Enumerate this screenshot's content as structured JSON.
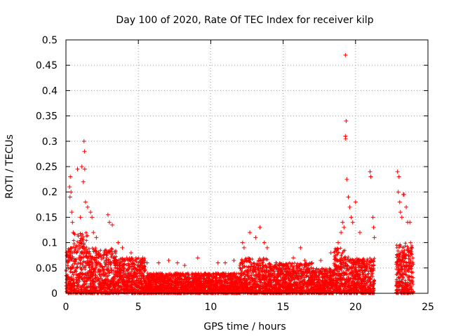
{
  "chart_data": {
    "type": "scatter",
    "title": "Day 100 of 2020, Rate Of TEC Index for receiver kilp",
    "xlabel": "GPS time / hours",
    "ylabel": "ROTI / TECUs",
    "xlim": [
      0,
      25
    ],
    "ylim": [
      0,
      0.5
    ],
    "x_ticks": [
      0,
      5,
      10,
      15,
      20,
      25
    ],
    "x_tick_labels": [
      "0",
      "5",
      "10",
      "15",
      "20",
      "25"
    ],
    "y_ticks": [
      0,
      0.05,
      0.1,
      0.15,
      0.2,
      0.25,
      0.3,
      0.35,
      0.4,
      0.45,
      0.5
    ],
    "y_tick_labels": [
      "0",
      "0.05",
      "0.1",
      "0.15",
      "0.2",
      "0.25",
      "0.3",
      "0.35",
      "0.4",
      "0.45",
      "0.5"
    ],
    "grid": true,
    "legend": "none",
    "marker": "+",
    "color": "#ff0000",
    "bands": [
      {
        "x": [
          0.0,
          0.5
        ],
        "y": [
          0.0,
          0.09
        ]
      },
      {
        "x": [
          0.5,
          1.5
        ],
        "y": [
          0.0,
          0.12
        ]
      },
      {
        "x": [
          1.5,
          3.5
        ],
        "y": [
          0.0,
          0.09
        ]
      },
      {
        "x": [
          3.5,
          5.5
        ],
        "y": [
          0.0,
          0.07
        ]
      },
      {
        "x": [
          5.5,
          9.5
        ],
        "y": [
          0.0,
          0.04
        ]
      },
      {
        "x": [
          9.5,
          12.0
        ],
        "y": [
          0.0,
          0.04
        ]
      },
      {
        "x": [
          12.0,
          14.0
        ],
        "y": [
          0.0,
          0.07
        ]
      },
      {
        "x": [
          14.0,
          17.0
        ],
        "y": [
          0.0,
          0.06
        ]
      },
      {
        "x": [
          17.0,
          18.5
        ],
        "y": [
          0.0,
          0.05
        ]
      },
      {
        "x": [
          18.5,
          19.5
        ],
        "y": [
          0.0,
          0.09
        ]
      },
      {
        "x": [
          19.5,
          21.3
        ],
        "y": [
          0.0,
          0.07
        ]
      },
      {
        "x": [
          22.8,
          24.0
        ],
        "y": [
          0.0,
          0.1
        ]
      }
    ],
    "points": [
      [
        0.25,
        0.21
      ],
      [
        0.3,
        0.23
      ],
      [
        0.35,
        0.2
      ],
      [
        0.28,
        0.19
      ],
      [
        0.4,
        0.16
      ],
      [
        0.45,
        0.14
      ],
      [
        0.5,
        0.12
      ],
      [
        0.8,
        0.245
      ],
      [
        1.1,
        0.25
      ],
      [
        1.25,
        0.3
      ],
      [
        1.28,
        0.28
      ],
      [
        1.3,
        0.245
      ],
      [
        1.2,
        0.22
      ],
      [
        1.35,
        0.18
      ],
      [
        1.5,
        0.17
      ],
      [
        1.7,
        0.16
      ],
      [
        1.8,
        0.15
      ],
      [
        1.0,
        0.15
      ],
      [
        1.9,
        0.12
      ],
      [
        2.1,
        0.11
      ],
      [
        2.9,
        0.155
      ],
      [
        3.0,
        0.14
      ],
      [
        3.2,
        0.135
      ],
      [
        3.6,
        0.1
      ],
      [
        3.9,
        0.09
      ],
      [
        4.2,
        0.07
      ],
      [
        4.5,
        0.08
      ],
      [
        5.3,
        0.07
      ],
      [
        5.6,
        0.06
      ],
      [
        6.4,
        0.06
      ],
      [
        7.1,
        0.065
      ],
      [
        7.7,
        0.06
      ],
      [
        8.2,
        0.055
      ],
      [
        9.1,
        0.07
      ],
      [
        10.5,
        0.06
      ],
      [
        11.0,
        0.06
      ],
      [
        11.6,
        0.065
      ],
      [
        12.2,
        0.1
      ],
      [
        12.3,
        0.09
      ],
      [
        12.7,
        0.12
      ],
      [
        13.1,
        0.11
      ],
      [
        13.4,
        0.13
      ],
      [
        13.7,
        0.1
      ],
      [
        13.9,
        0.09
      ],
      [
        14.5,
        0.06
      ],
      [
        15.0,
        0.055
      ],
      [
        15.7,
        0.07
      ],
      [
        16.2,
        0.09
      ],
      [
        16.5,
        0.065
      ],
      [
        17.0,
        0.06
      ],
      [
        17.6,
        0.065
      ],
      [
        18.3,
        0.08
      ],
      [
        18.6,
        0.075
      ],
      [
        18.8,
        0.1
      ],
      [
        19.0,
        0.12
      ],
      [
        19.1,
        0.14
      ],
      [
        19.2,
        0.13
      ],
      [
        19.3,
        0.31
      ],
      [
        19.32,
        0.305
      ],
      [
        19.3,
        0.47
      ],
      [
        19.35,
        0.34
      ],
      [
        19.4,
        0.225
      ],
      [
        19.5,
        0.19
      ],
      [
        19.6,
        0.17
      ],
      [
        19.7,
        0.15
      ],
      [
        19.8,
        0.14
      ],
      [
        20.0,
        0.18
      ],
      [
        20.3,
        0.12
      ],
      [
        21.0,
        0.24
      ],
      [
        21.05,
        0.23
      ],
      [
        21.2,
        0.15
      ],
      [
        21.25,
        0.13
      ],
      [
        21.3,
        0.11
      ],
      [
        22.9,
        0.24
      ],
      [
        23.0,
        0.23
      ],
      [
        22.95,
        0.2
      ],
      [
        23.05,
        0.18
      ],
      [
        23.1,
        0.16
      ],
      [
        23.2,
        0.15
      ],
      [
        23.3,
        0.195
      ],
      [
        23.35,
        0.195
      ],
      [
        23.5,
        0.17
      ],
      [
        23.6,
        0.14
      ],
      [
        23.75,
        0.14
      ],
      [
        23.8,
        0.1
      ]
    ]
  }
}
